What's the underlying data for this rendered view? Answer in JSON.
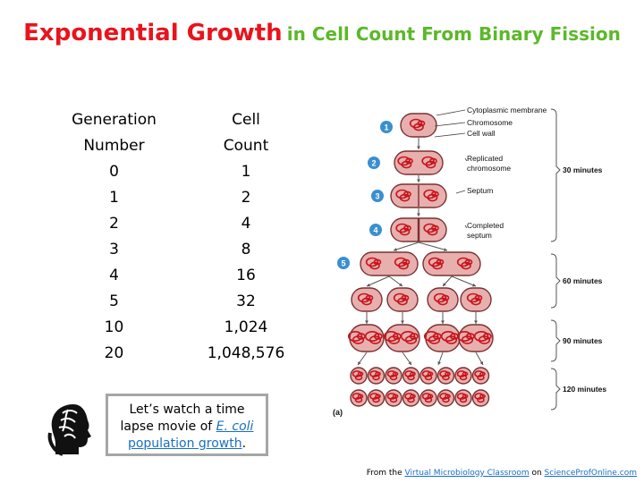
{
  "title": {
    "main": "Exponential Growth",
    "sub": "in Cell Count From Binary Fission"
  },
  "table": {
    "headers": [
      [
        "Generation",
        "Number"
      ],
      [
        "Cell",
        "Count"
      ]
    ],
    "rows": [
      {
        "gen": "0",
        "count": "1"
      },
      {
        "gen": "1",
        "count": "2"
      },
      {
        "gen": "2",
        "count": "4"
      },
      {
        "gen": "3",
        "count": "8"
      },
      {
        "gen": "4",
        "count": "16"
      },
      {
        "gen": "5",
        "count": "32"
      },
      {
        "gen": "10",
        "count": "1,024"
      },
      {
        "gen": "20",
        "count": "1,048,576"
      }
    ]
  },
  "callout": {
    "line1": "Let’s watch a time",
    "line2_prefix": "lapse movie of ",
    "link_species": "E. coli",
    "link_rest": "population growth",
    "suffix": "."
  },
  "footer": {
    "prefix": "From the ",
    "link1": "Virtual Microbiology Classroom",
    "middle": " on ",
    "link2": "ScienceProfOnline.com"
  },
  "diagram": {
    "step_labels": [
      "1",
      "2",
      "3",
      "4",
      "5"
    ],
    "part_labels": {
      "cytoplasmic_membrane": "Cytoplasmic membrane",
      "chromosome": "Chromosome",
      "cell_wall": "Cell wall",
      "replicated": "Replicated",
      "replicated_2": "chromosome",
      "septum": "Septum",
      "completed": "Completed",
      "completed_2": "septum"
    },
    "time_labels": [
      "30 minutes",
      "60 minutes",
      "90 minutes",
      "120 minutes"
    ],
    "panel_label": "(a)",
    "colors": {
      "step_circle": "#3a8fd0",
      "cell_fill": "#e7b0ae",
      "dna": "#c8141c",
      "cell_wall": "#7a3030"
    }
  }
}
